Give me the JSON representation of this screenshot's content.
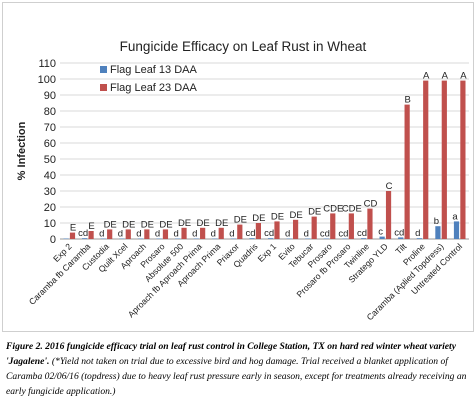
{
  "chart_data": {
    "type": "bar",
    "title": "Fungicide Efficacy on Leaf Rust in Wheat",
    "ylabel": "% Infection",
    "xlabel": "",
    "ylim": [
      0,
      110
    ],
    "yticks": [
      0,
      10,
      20,
      30,
      40,
      50,
      60,
      70,
      80,
      90,
      100,
      110
    ],
    "grid": true,
    "legend_position": "top-left",
    "categories": [
      "Exp 2",
      "Caramba fb Caramba",
      "Custodia",
      "Quilt Xcel",
      "Aproach",
      "Prosaro",
      "Absolute 500",
      "Aproach fb Aproach Prima",
      "Aproach Prima",
      "Priaxor",
      "Quadris",
      "Exp 1",
      "Evito",
      "Tebucar",
      "Prosaro",
      "Prosaro fb Prosaro",
      "Twinline",
      "Stratego YLD",
      "Tilt",
      "Proline",
      "Caramba (Aplied Topdress)",
      "Untreated Control"
    ],
    "series": [
      {
        "name": "Flag Leaf 13 DAA",
        "color": "#4f81bd",
        "values": [
          0.3,
          0.5,
          0.3,
          0.3,
          0.3,
          0.3,
          0.3,
          0.3,
          0.3,
          0.3,
          0.5,
          0.5,
          0.3,
          0.3,
          0.3,
          0.3,
          0.5,
          1.5,
          1.0,
          0.5,
          8,
          11
        ],
        "letters": [
          "",
          "cd",
          "d",
          "d",
          "d",
          "d",
          "d",
          "d",
          "d",
          "d",
          "cd",
          "cd",
          "d",
          "d",
          "cd",
          "cd",
          "cd",
          "c",
          "cd",
          "d",
          "b",
          "a"
        ]
      },
      {
        "name": "Flag Leaf 23 DAA",
        "color": "#c0504d",
        "values": [
          4,
          5,
          6,
          6,
          6,
          6,
          7,
          7,
          7,
          9,
          10,
          11,
          12,
          14,
          16,
          16,
          19,
          30,
          84,
          99,
          99,
          99
        ],
        "letters": [
          "E",
          "E",
          "DE",
          "DE",
          "DE",
          "DE",
          "DE",
          "DE",
          "DE",
          "DE",
          "DE",
          "DE",
          "DE",
          "DE",
          "CDE",
          "CDE",
          "CD",
          "C",
          "B",
          "A",
          "A",
          "A"
        ]
      }
    ]
  },
  "caption": {
    "bold": "Figure 2. 2016 fungicide efficacy trial on leaf rust control in College Station, TX on hard red winter wheat variety 'Jagalene'.",
    "rest": " (*Yield not taken on trial due to excessive bird and hog damage. Trial received a blanket application of Caramba 02/06/16 (topdress) due to heavy leaf rust pressure early in season, except for treatments already receiving an early fungicide application.)"
  }
}
